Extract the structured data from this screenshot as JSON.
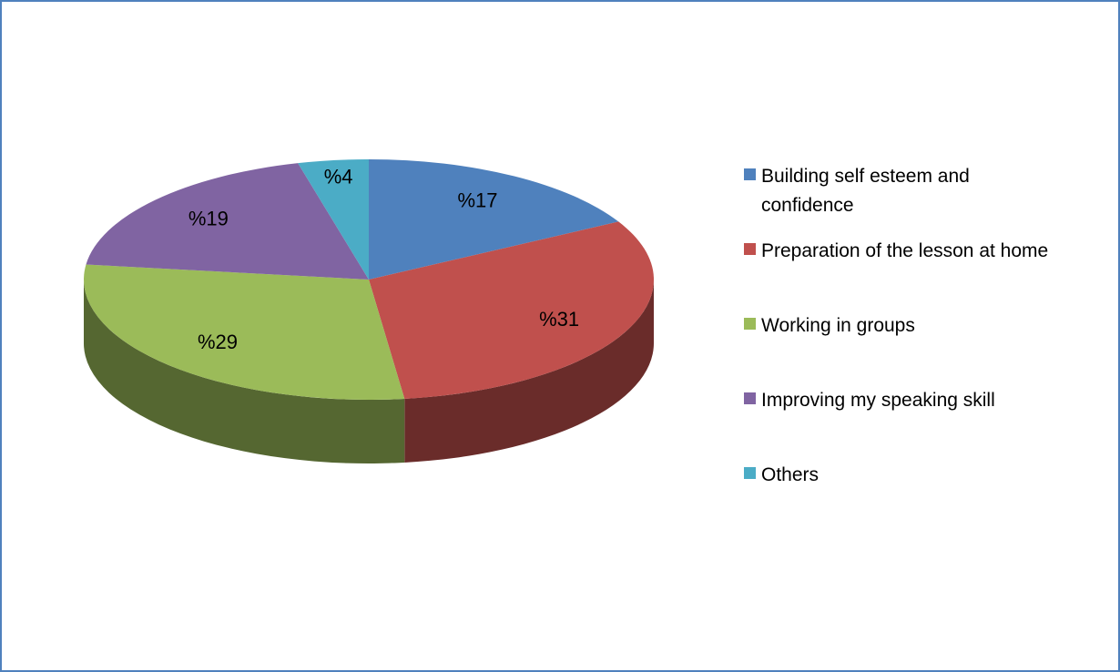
{
  "chart_data": {
    "type": "pie",
    "categories": [
      "Building self esteem and confidence",
      "Preparation of the lesson at home",
      "Working in groups",
      "Improving my speaking skill",
      "Others"
    ],
    "values": [
      17,
      31,
      29,
      19,
      4
    ],
    "value_labels": [
      "%17",
      "%31",
      "%29",
      "%19",
      "%4"
    ],
    "colors": [
      "#4f81bd",
      "#c0504d",
      "#9bbb59",
      "#8064a2",
      "#4bacc6"
    ],
    "legend": "right"
  }
}
